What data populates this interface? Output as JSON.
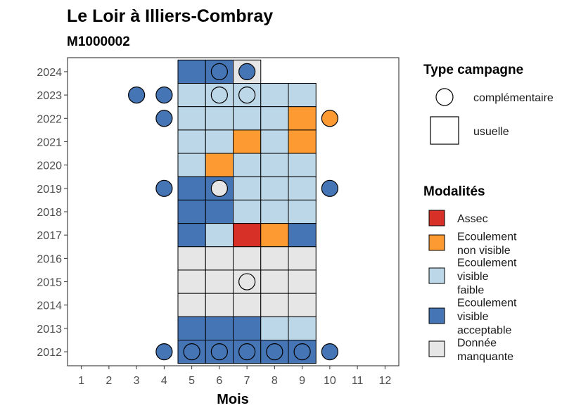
{
  "chart_data": {
    "type": "heatmap",
    "title": "Le Loir à Illiers-Combray",
    "subtitle": "M1000002",
    "xlabel": "Mois",
    "ylabel": "",
    "x_ticks": [
      "1",
      "2",
      "3",
      "4",
      "5",
      "6",
      "7",
      "8",
      "9",
      "10",
      "11",
      "12"
    ],
    "y_ticks": [
      "2012",
      "2013",
      "2014",
      "2015",
      "2016",
      "2017",
      "2018",
      "2019",
      "2020",
      "2021",
      "2022",
      "2023",
      "2024"
    ],
    "xlim": [
      0.5,
      12.5
    ],
    "ylim": [
      2011.4,
      2024.6
    ],
    "grid": false,
    "legend_position": "right",
    "colors": {
      "Assec": "#d73027",
      "Ecoulement non visible": "#fd9a31",
      "Ecoulement visible faible": "#bcd7e8",
      "Ecoulement visible acceptable": "#4575b4",
      "Donnée manquante": "#e6e6e6"
    },
    "legend_type": {
      "title": "Type campagne",
      "entries": [
        {
          "label": "complémentaire",
          "shape": "circle"
        },
        {
          "label": "usuelle",
          "shape": "square"
        }
      ]
    },
    "legend_modalites": {
      "title": "Modalités",
      "entries": [
        {
          "key": "Assec",
          "lines": [
            "Assec"
          ]
        },
        {
          "key": "Ecoulement non visible",
          "lines": [
            "Ecoulement",
            "non visible"
          ]
        },
        {
          "key": "Ecoulement visible faible",
          "lines": [
            "Ecoulement",
            "visible",
            "faible"
          ]
        },
        {
          "key": "Ecoulement visible acceptable",
          "lines": [
            "Ecoulement",
            "visible",
            "acceptable"
          ]
        },
        {
          "key": "Donnée manquante",
          "lines": [
            "Donnée",
            "manquante"
          ]
        }
      ]
    },
    "tiles": [
      {
        "year": 2024,
        "month": 5,
        "value": "Ecoulement visible acceptable"
      },
      {
        "year": 2024,
        "month": 6,
        "value": "Ecoulement visible acceptable"
      },
      {
        "year": 2024,
        "month": 7,
        "value": "Donnée manquante"
      },
      {
        "year": 2023,
        "month": 5,
        "value": "Ecoulement visible faible"
      },
      {
        "year": 2023,
        "month": 6,
        "value": "Ecoulement visible faible"
      },
      {
        "year": 2023,
        "month": 7,
        "value": "Ecoulement visible faible"
      },
      {
        "year": 2023,
        "month": 8,
        "value": "Ecoulement visible faible"
      },
      {
        "year": 2023,
        "month": 9,
        "value": "Ecoulement visible faible"
      },
      {
        "year": 2022,
        "month": 5,
        "value": "Ecoulement visible faible"
      },
      {
        "year": 2022,
        "month": 6,
        "value": "Ecoulement visible faible"
      },
      {
        "year": 2022,
        "month": 7,
        "value": "Ecoulement visible faible"
      },
      {
        "year": 2022,
        "month": 8,
        "value": "Ecoulement visible faible"
      },
      {
        "year": 2022,
        "month": 9,
        "value": "Ecoulement non visible"
      },
      {
        "year": 2021,
        "month": 5,
        "value": "Ecoulement visible faible"
      },
      {
        "year": 2021,
        "month": 6,
        "value": "Ecoulement visible faible"
      },
      {
        "year": 2021,
        "month": 7,
        "value": "Ecoulement non visible"
      },
      {
        "year": 2021,
        "month": 8,
        "value": "Ecoulement visible faible"
      },
      {
        "year": 2021,
        "month": 9,
        "value": "Ecoulement non visible"
      },
      {
        "year": 2020,
        "month": 5,
        "value": "Ecoulement visible faible"
      },
      {
        "year": 2020,
        "month": 6,
        "value": "Ecoulement non visible"
      },
      {
        "year": 2020,
        "month": 7,
        "value": "Ecoulement visible faible"
      },
      {
        "year": 2020,
        "month": 8,
        "value": "Ecoulement visible faible"
      },
      {
        "year": 2020,
        "month": 9,
        "value": "Ecoulement visible faible"
      },
      {
        "year": 2019,
        "month": 5,
        "value": "Ecoulement visible acceptable"
      },
      {
        "year": 2019,
        "month": 6,
        "value": "Ecoulement visible acceptable"
      },
      {
        "year": 2019,
        "month": 7,
        "value": "Ecoulement visible faible"
      },
      {
        "year": 2019,
        "month": 8,
        "value": "Ecoulement visible faible"
      },
      {
        "year": 2019,
        "month": 9,
        "value": "Ecoulement visible faible"
      },
      {
        "year": 2018,
        "month": 5,
        "value": "Ecoulement visible acceptable"
      },
      {
        "year": 2018,
        "month": 6,
        "value": "Ecoulement visible acceptable"
      },
      {
        "year": 2018,
        "month": 7,
        "value": "Ecoulement visible faible"
      },
      {
        "year": 2018,
        "month": 8,
        "value": "Ecoulement visible faible"
      },
      {
        "year": 2018,
        "month": 9,
        "value": "Ecoulement visible faible"
      },
      {
        "year": 2017,
        "month": 5,
        "value": "Ecoulement visible acceptable"
      },
      {
        "year": 2017,
        "month": 6,
        "value": "Ecoulement visible faible"
      },
      {
        "year": 2017,
        "month": 7,
        "value": "Assec"
      },
      {
        "year": 2017,
        "month": 8,
        "value": "Ecoulement non visible"
      },
      {
        "year": 2017,
        "month": 9,
        "value": "Ecoulement visible acceptable"
      },
      {
        "year": 2016,
        "month": 5,
        "value": "Donnée manquante"
      },
      {
        "year": 2016,
        "month": 6,
        "value": "Donnée manquante"
      },
      {
        "year": 2016,
        "month": 7,
        "value": "Donnée manquante"
      },
      {
        "year": 2016,
        "month": 8,
        "value": "Donnée manquante"
      },
      {
        "year": 2016,
        "month": 9,
        "value": "Donnée manquante"
      },
      {
        "year": 2015,
        "month": 5,
        "value": "Donnée manquante"
      },
      {
        "year": 2015,
        "month": 6,
        "value": "Donnée manquante"
      },
      {
        "year": 2015,
        "month": 7,
        "value": "Donnée manquante"
      },
      {
        "year": 2015,
        "month": 8,
        "value": "Donnée manquante"
      },
      {
        "year": 2015,
        "month": 9,
        "value": "Donnée manquante"
      },
      {
        "year": 2014,
        "month": 5,
        "value": "Donnée manquante"
      },
      {
        "year": 2014,
        "month": 6,
        "value": "Donnée manquante"
      },
      {
        "year": 2014,
        "month": 7,
        "value": "Donnée manquante"
      },
      {
        "year": 2014,
        "month": 8,
        "value": "Donnée manquante"
      },
      {
        "year": 2014,
        "month": 9,
        "value": "Donnée manquante"
      },
      {
        "year": 2013,
        "month": 5,
        "value": "Ecoulement visible acceptable"
      },
      {
        "year": 2013,
        "month": 6,
        "value": "Ecoulement visible acceptable"
      },
      {
        "year": 2013,
        "month": 7,
        "value": "Ecoulement visible acceptable"
      },
      {
        "year": 2013,
        "month": 8,
        "value": "Ecoulement visible faible"
      },
      {
        "year": 2013,
        "month": 9,
        "value": "Ecoulement visible faible"
      },
      {
        "year": 2012,
        "month": 5,
        "value": "Ecoulement visible acceptable"
      },
      {
        "year": 2012,
        "month": 6,
        "value": "Ecoulement visible acceptable"
      },
      {
        "year": 2012,
        "month": 7,
        "value": "Ecoulement visible acceptable"
      },
      {
        "year": 2012,
        "month": 8,
        "value": "Ecoulement visible acceptable"
      },
      {
        "year": 2012,
        "month": 9,
        "value": "Ecoulement visible acceptable"
      }
    ],
    "points": [
      {
        "year": 2024,
        "month": 6,
        "value": "Ecoulement visible acceptable"
      },
      {
        "year": 2024,
        "month": 7,
        "value": "Ecoulement visible acceptable"
      },
      {
        "year": 2023,
        "month": 3,
        "value": "Ecoulement visible acceptable"
      },
      {
        "year": 2023,
        "month": 4,
        "value": "Ecoulement visible acceptable"
      },
      {
        "year": 2023,
        "month": 6,
        "value": "Ecoulement visible faible"
      },
      {
        "year": 2023,
        "month": 7,
        "value": "Ecoulement visible faible"
      },
      {
        "year": 2022,
        "month": 4,
        "value": "Ecoulement visible acceptable"
      },
      {
        "year": 2022,
        "month": 10,
        "value": "Ecoulement non visible"
      },
      {
        "year": 2019,
        "month": 4,
        "value": "Ecoulement visible acceptable"
      },
      {
        "year": 2019,
        "month": 6,
        "value": "Donnée manquante"
      },
      {
        "year": 2019,
        "month": 10,
        "value": "Ecoulement visible acceptable"
      },
      {
        "year": 2015,
        "month": 7,
        "value": "Donnée manquante"
      },
      {
        "year": 2012,
        "month": 4,
        "value": "Ecoulement visible acceptable"
      },
      {
        "year": 2012,
        "month": 5,
        "value": "Ecoulement visible acceptable"
      },
      {
        "year": 2012,
        "month": 6,
        "value": "Ecoulement visible acceptable"
      },
      {
        "year": 2012,
        "month": 7,
        "value": "Ecoulement visible acceptable"
      },
      {
        "year": 2012,
        "month": 8,
        "value": "Ecoulement visible acceptable"
      },
      {
        "year": 2012,
        "month": 9,
        "value": "Ecoulement visible acceptable"
      },
      {
        "year": 2012,
        "month": 10,
        "value": "Ecoulement visible acceptable"
      }
    ]
  }
}
